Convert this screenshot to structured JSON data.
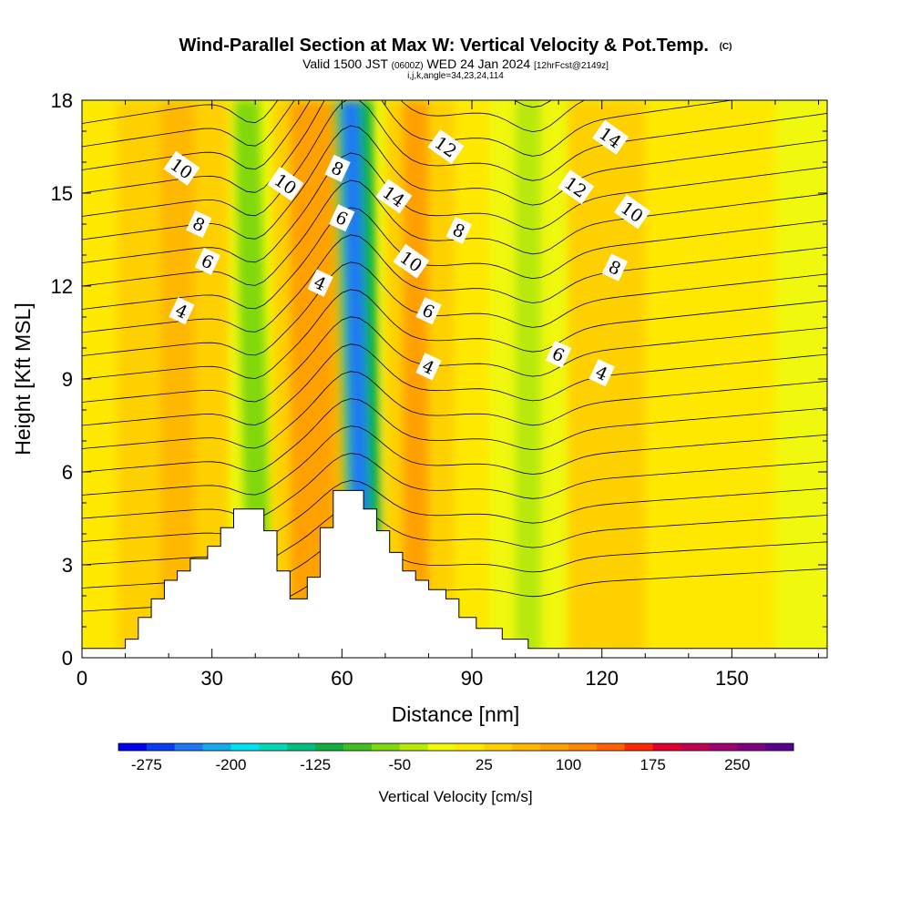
{
  "title": {
    "main": "Wind-Parallel Section at Max W: Vertical Velocity & Pot.Temp.",
    "copyright": "(C)",
    "valid_prefix": "Valid 1500 JST",
    "valid_utc": "(0600Z)",
    "valid_date": "WED 24 Jan 2024",
    "forecast": "[12hrFcst@2149z]",
    "indices": "i,j,k,angle=34,23,24,114"
  },
  "chart_data": {
    "type": "heatmap",
    "xlabel": "Distance [nm]",
    "ylabel": "Height [Kft MSL]",
    "xlim": [
      0,
      172
    ],
    "ylim": [
      0,
      18
    ],
    "xticks": [
      0,
      30,
      60,
      90,
      120,
      150
    ],
    "yticks": [
      0,
      3,
      6,
      9,
      12,
      15,
      18
    ],
    "colorbar": {
      "title": "Vertical Velocity [cm/s]",
      "min": -300,
      "step": 25,
      "labels": [
        "-275",
        "-200",
        "-125",
        "-50",
        "25",
        "100",
        "175",
        "250"
      ],
      "label_values": [
        -275,
        -200,
        -125,
        -50,
        25,
        100,
        175,
        250
      ],
      "colors": [
        "#0000ee",
        "#0a3cf0",
        "#1e78f5",
        "#14aaf0",
        "#00e0f0",
        "#00d8b8",
        "#00c080",
        "#10b040",
        "#40c020",
        "#80d810",
        "#b8e808",
        "#f0f808",
        "#ffe800",
        "#ffd000",
        "#ffb800",
        "#ffa000",
        "#ff8800",
        "#ff6000",
        "#ff2800",
        "#e00030",
        "#c00050",
        "#a00070",
        "#800080",
        "#5a0090"
      ]
    },
    "velocity_field": {
      "description": "approximate vertical velocity [cm/s] by distance (nm) bands",
      "columns": [
        {
          "x0": 0,
          "x1": 8,
          "w": 5
        },
        {
          "x0": 8,
          "x1": 18,
          "w": 35
        },
        {
          "x0": 18,
          "x1": 26,
          "w": 55
        },
        {
          "x0": 26,
          "x1": 34,
          "w": 35
        },
        {
          "x0": 34,
          "x1": 38,
          "w": -5
        },
        {
          "x0": 38,
          "x1": 44,
          "w": -70
        },
        {
          "x0": 44,
          "x1": 48,
          "w": 25
        },
        {
          "x0": 48,
          "x1": 54,
          "w": 75
        },
        {
          "x0": 54,
          "x1": 58,
          "w": 90
        },
        {
          "x0": 58,
          "x1": 61,
          "w": 60
        },
        {
          "x0": 61,
          "x1": 63,
          "w": -80
        },
        {
          "x0": 63,
          "x1": 67,
          "w": -250
        },
        {
          "x0": 67,
          "x1": 70,
          "w": -110
        },
        {
          "x0": 70,
          "x1": 74,
          "w": 40
        },
        {
          "x0": 74,
          "x1": 80,
          "w": 80
        },
        {
          "x0": 80,
          "x1": 86,
          "w": 45
        },
        {
          "x0": 86,
          "x1": 94,
          "w": 20
        },
        {
          "x0": 94,
          "x1": 100,
          "w": -10
        },
        {
          "x0": 100,
          "x1": 106,
          "w": -45
        },
        {
          "x0": 106,
          "x1": 112,
          "w": -20
        },
        {
          "x0": 112,
          "x1": 120,
          "w": 30
        },
        {
          "x0": 120,
          "x1": 130,
          "w": 40
        },
        {
          "x0": 130,
          "x1": 140,
          "w": 20
        },
        {
          "x0": 140,
          "x1": 160,
          "w": 5
        },
        {
          "x0": 160,
          "x1": 172,
          "w": -20
        }
      ]
    },
    "terrain": [
      [
        0,
        0.3
      ],
      [
        10,
        0.3
      ],
      [
        10,
        0.6
      ],
      [
        13,
        0.6
      ],
      [
        13,
        1.3
      ],
      [
        16,
        1.3
      ],
      [
        16,
        1.9
      ],
      [
        19,
        1.9
      ],
      [
        19,
        2.5
      ],
      [
        22,
        2.5
      ],
      [
        22,
        2.8
      ],
      [
        25,
        2.8
      ],
      [
        25,
        3.2
      ],
      [
        29,
        3.2
      ],
      [
        29,
        3.6
      ],
      [
        32,
        3.6
      ],
      [
        32,
        4.2
      ],
      [
        35,
        4.2
      ],
      [
        35,
        4.8
      ],
      [
        42,
        4.8
      ],
      [
        42,
        4.1
      ],
      [
        45,
        4.1
      ],
      [
        45,
        2.8
      ],
      [
        48,
        2.8
      ],
      [
        48,
        1.9
      ],
      [
        52,
        1.9
      ],
      [
        52,
        2.6
      ],
      [
        55,
        2.6
      ],
      [
        55,
        4.2
      ],
      [
        58,
        4.2
      ],
      [
        58,
        5.4
      ],
      [
        65,
        5.4
      ],
      [
        65,
        4.8
      ],
      [
        68,
        4.8
      ],
      [
        68,
        4.1
      ],
      [
        71,
        4.1
      ],
      [
        71,
        3.4
      ],
      [
        74,
        3.4
      ],
      [
        74,
        2.8
      ],
      [
        77,
        2.8
      ],
      [
        77,
        2.5
      ],
      [
        80,
        2.5
      ],
      [
        80,
        2.2
      ],
      [
        84,
        2.2
      ],
      [
        84,
        1.9
      ],
      [
        87,
        1.9
      ],
      [
        87,
        1.3
      ],
      [
        91,
        1.3
      ],
      [
        91,
        0.95
      ],
      [
        97,
        0.95
      ],
      [
        97,
        0.6
      ],
      [
        103,
        0.6
      ],
      [
        103,
        0.3
      ],
      [
        172,
        0.3
      ]
    ],
    "theta_contours": {
      "description": "potential temperature isolines, labeled values shown",
      "labels": [
        {
          "text": "10",
          "x": 23,
          "y": 15.8
        },
        {
          "text": "8",
          "x": 27,
          "y": 14.0
        },
        {
          "text": "6",
          "x": 29,
          "y": 12.8
        },
        {
          "text": "4",
          "x": 23,
          "y": 11.2
        },
        {
          "text": "10",
          "x": 47,
          "y": 15.3
        },
        {
          "text": "8",
          "x": 59,
          "y": 15.8
        },
        {
          "text": "6",
          "x": 60,
          "y": 14.2
        },
        {
          "text": "4",
          "x": 55,
          "y": 12.1
        },
        {
          "text": "12",
          "x": 84,
          "y": 16.5
        },
        {
          "text": "14",
          "x": 72,
          "y": 14.9
        },
        {
          "text": "8",
          "x": 87,
          "y": 13.8
        },
        {
          "text": "10",
          "x": 76,
          "y": 12.8
        },
        {
          "text": "6",
          "x": 80,
          "y": 11.2
        },
        {
          "text": "4",
          "x": 80,
          "y": 9.4
        },
        {
          "text": "14",
          "x": 122,
          "y": 16.8
        },
        {
          "text": "12",
          "x": 114,
          "y": 15.2
        },
        {
          "text": "10",
          "x": 127,
          "y": 14.4
        },
        {
          "text": "8",
          "x": 123,
          "y": 12.6
        },
        {
          "text": "6",
          "x": 110,
          "y": 9.8
        },
        {
          "text": "4",
          "x": 120,
          "y": 9.2
        }
      ]
    }
  }
}
